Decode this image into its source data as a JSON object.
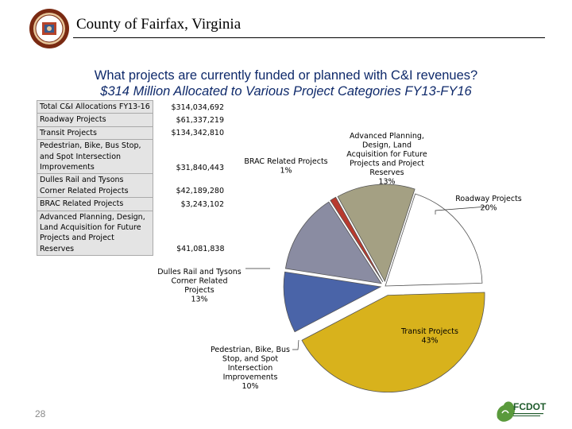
{
  "header": {
    "county_title": "County of Fairfax, Virginia"
  },
  "slide_number": "28",
  "logo": {
    "text": "FCDOT"
  },
  "table": {
    "rows": [
      {
        "label": "Total C&I Allocations FY13-16",
        "value": "$314,034,692"
      },
      {
        "label": "Roadway Projects",
        "value": "$61,337,219"
      },
      {
        "label": "Transit Projects",
        "value": "$134,342,810"
      },
      {
        "label": "Pedestrian, Bike, Bus Stop, and Spot Intersection Improvements",
        "value": "$31,840,443"
      },
      {
        "label": "Dulles Rail and Tysons Corner Related Projects",
        "value": "$42,189,280"
      },
      {
        "label": "BRAC Related Projects",
        "value": "$3,243,102"
      },
      {
        "label": "Advanced Planning, Design, Land Acquisition for Future Projects and Project Reserves",
        "value": "$41,081,838"
      }
    ]
  },
  "chart_data": {
    "type": "pie",
    "title": "What projects are currently funded or planned with C&I revenues?",
    "subtitle": "$314 Million Allocated to Various Project Categories  FY13-FY16",
    "slices": [
      {
        "label": "Roadway Projects",
        "value": 61337219,
        "percent_label": "20%",
        "color": "#ffffff"
      },
      {
        "label": "Transit Projects",
        "value": 134342810,
        "percent_label": "43%",
        "color": "#d8b21c"
      },
      {
        "label": "Pedestrian, Bike, Bus Stop, and Spot Intersection Improvements",
        "value": 31840443,
        "percent_label": "10%",
        "color": "#4a64a8"
      },
      {
        "label": "Dulles Rail and Tysons Corner Related Projects",
        "value": 42189280,
        "percent_label": "13%",
        "color": "#8a8ca2"
      },
      {
        "label": "BRAC Related Projects",
        "value": 3243102,
        "percent_label": "1%",
        "color": "#b83a2e"
      },
      {
        "label": "Advanced Planning, Design, Land Acquisition for Future Projects and Project Reserves",
        "value": 41081838,
        "percent_label": "13%",
        "color": "#a4a083"
      }
    ],
    "data_labels": [
      {
        "lines": [
          "Roadway Projects",
          "20%"
        ]
      },
      {
        "lines": [
          "Transit Projects",
          "43%"
        ]
      },
      {
        "lines": [
          "Pedestrian, Bike, Bus",
          "Stop, and Spot",
          "Intersection",
          "Improvements",
          "10%"
        ]
      },
      {
        "lines": [
          "Dulles Rail and Tysons",
          "Corner Related",
          "Projects",
          "13%"
        ]
      },
      {
        "lines": [
          "BRAC Related Projects",
          "1%"
        ]
      },
      {
        "lines": [
          "Advanced Planning,",
          "Design, Land",
          "Acquisition for Future",
          "Projects and Project",
          "Reserves",
          "13%"
        ]
      }
    ]
  }
}
